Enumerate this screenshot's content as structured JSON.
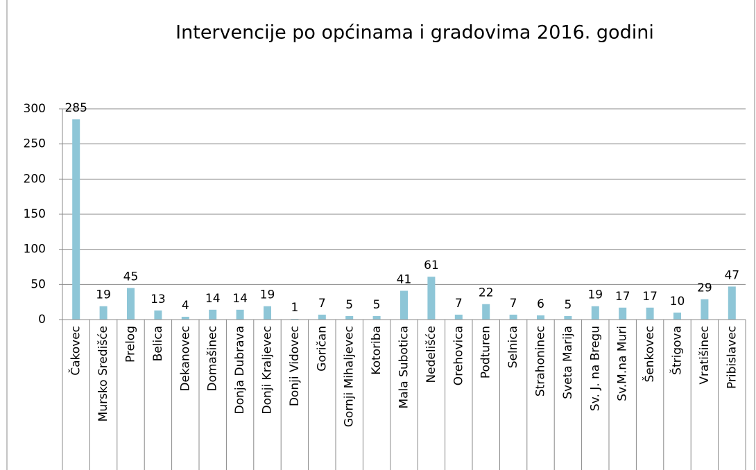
{
  "chart_data": {
    "type": "bar",
    "title": "Intervencije po općinama i gradovima 2016. godini",
    "categories": [
      "Čakovec",
      "Mursko Središće",
      "Prelog",
      "Belica",
      "Dekanovec",
      "Domašinec",
      "Donja Dubrava",
      "Donji  Kraljevec",
      "Donji Vidovec",
      "Goričan",
      "Gornji Mihaljevec",
      "Kotoriba",
      "Mala Subotica",
      "Nedelišće",
      "Orehovica",
      "Podturen",
      "Selnica",
      "Strahoninec",
      "Sveta Marija",
      "Sv. J. na Bregu",
      "Sv.M.na Muri",
      "Šenkovec",
      "Štrigova",
      "Vratišinec",
      "Pribislavec"
    ],
    "values": [
      285,
      19,
      45,
      13,
      4,
      14,
      14,
      19,
      1,
      7,
      5,
      5,
      41,
      61,
      7,
      22,
      7,
      6,
      5,
      19,
      17,
      17,
      10,
      29,
      47
    ],
    "color": "#8ec6d7",
    "ylim": [
      0,
      300
    ],
    "yticks": [
      0,
      50,
      100,
      150,
      200,
      250,
      300
    ],
    "grid": true
  }
}
